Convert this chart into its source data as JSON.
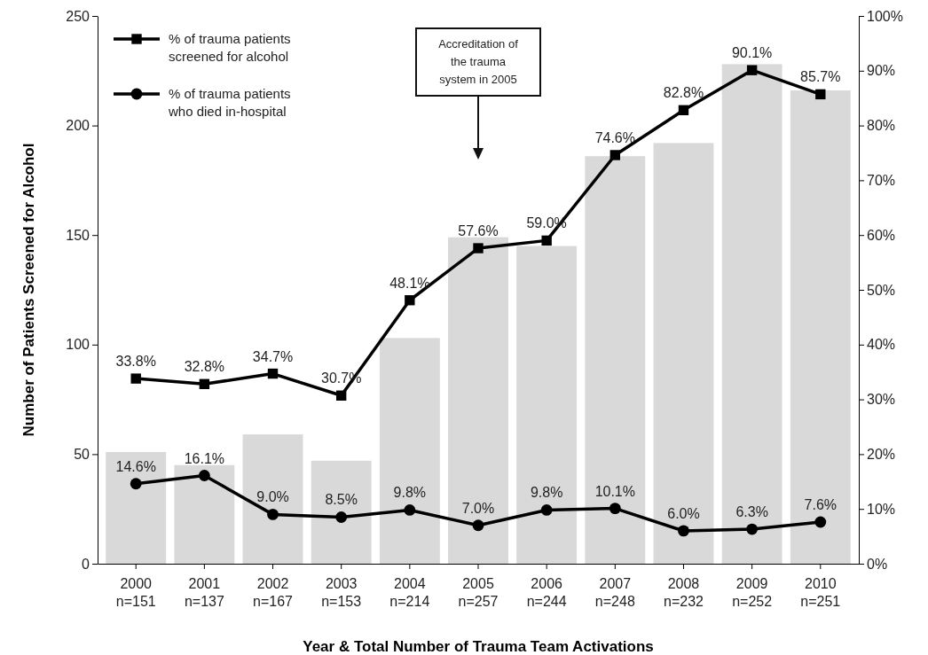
{
  "chart_data": {
    "type": "bar",
    "xlabel": "Year & Total Number of Trauma Team Activations",
    "ylabel": "Number of Patients Screened for Alcohol",
    "categories": [
      "2000\nn=151",
      "2001\nn=137",
      "2002\nn=167",
      "2003\nn=153",
      "2004\nn=214",
      "2005\nn=257",
      "2006\nn=244",
      "2007\nn=248",
      "2008\nn=232",
      "2009\nn=252",
      "2010\nn=251"
    ],
    "series": [
      {
        "color": "#d9d9d9",
        "values": [
          51,
          45,
          59,
          47,
          103,
          149,
          145,
          186,
          192,
          228,
          216
        ]
      },
      {
        "type": "line",
        "axis": "y2",
        "name": "% of trauma patients\nscreened for alcohol",
        "color": "#000000",
        "marker": "square",
        "values": [
          33.8,
          32.8,
          34.7,
          30.7,
          48.1,
          57.6,
          59.0,
          74.6,
          82.8,
          90.1,
          85.7
        ],
        "value_labels": [
          "33.8%",
          "32.8%",
          "34.7%",
          "30.7%",
          "48.1%",
          "57.6%",
          "59.0%",
          "74.6%",
          "82.8%",
          "90.1%",
          "85.7%"
        ]
      },
      {
        "type": "line",
        "axis": "y2",
        "name": "% of trauma patients\nwho died in-hospital",
        "color": "#000000",
        "marker": "circle",
        "values": [
          14.6,
          16.1,
          9.0,
          8.5,
          9.8,
          7.0,
          9.8,
          10.1,
          6.0,
          6.3,
          7.6
        ],
        "value_labels": [
          "14.6%",
          "16.1%",
          "9.0%",
          "8.5%",
          "9.8%",
          "7.0%",
          "9.8%",
          "10.1%",
          "6.0%",
          "6.3%",
          "7.6%"
        ]
      }
    ],
    "ylim": [
      0,
      250
    ],
    "yticks": [
      0,
      50,
      100,
      150,
      200,
      250
    ],
    "y2lim": [
      0,
      100
    ],
    "y2ticks": [
      {
        "value": 0,
        "label": "0%"
      },
      {
        "value": 10,
        "label": "10%"
      },
      {
        "value": 20,
        "label": "20%"
      },
      {
        "value": 30,
        "label": "30%"
      },
      {
        "value": 40,
        "label": "40%"
      },
      {
        "value": 50,
        "label": "50%"
      },
      {
        "value": 60,
        "label": "60%"
      },
      {
        "value": 70,
        "label": "70%"
      },
      {
        "value": 80,
        "label": "80%"
      },
      {
        "value": 90,
        "label": "90%"
      },
      {
        "value": 100,
        "label": "100%"
      }
    ],
    "annotations": [
      "Accreditation of\nthe trauma\nsystem in 2005"
    ],
    "legend": "top left",
    "grid": false,
    "line_style": "solid"
  }
}
